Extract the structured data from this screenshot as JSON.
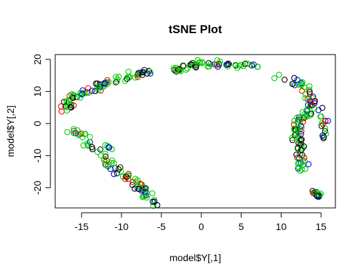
{
  "chart_data": {
    "type": "scatter",
    "title": "tSNE Plot",
    "xlabel": "model$Y[,1]",
    "ylabel": "model$Y[,2]",
    "xlim": [
      -18.3,
      16.8
    ],
    "ylim": [
      -26.3,
      21.5
    ],
    "xticks": [
      -15,
      -10,
      -5,
      0,
      5,
      10,
      15
    ],
    "yticks": [
      -20,
      -10,
      0,
      10,
      20
    ],
    "xtick_labels": [
      "-15",
      "-10",
      "-5",
      "0",
      "5",
      "10",
      "15"
    ],
    "ytick_labels": [
      "-20",
      "-10",
      "0",
      "10",
      "20"
    ],
    "grid": false,
    "legend": "none",
    "marker": "open-circle",
    "series_colors": [
      "#000000",
      "#ff0000",
      "#00cd00",
      "#0000ff"
    ],
    "clusters": [
      {
        "path": [
          [
            -17,
            4
          ],
          [
            -16.5,
            8
          ],
          [
            -15,
            9.5
          ],
          [
            -13.5,
            10.5
          ],
          [
            -12,
            12.5
          ],
          [
            -10,
            14
          ],
          [
            -8,
            15.5
          ],
          [
            -6,
            16.5
          ]
        ],
        "n": 85,
        "spread": 1.0
      },
      {
        "path": [
          [
            -17,
            -3
          ],
          [
            -15.5,
            -3
          ],
          [
            -14.5,
            -4
          ],
          [
            -14,
            -7.5
          ],
          [
            -12.5,
            -10
          ],
          [
            -11,
            -14
          ],
          [
            -9,
            -17
          ],
          [
            -7.5,
            -20
          ],
          [
            -6,
            -25
          ]
        ],
        "n": 85,
        "spread": 1.0
      },
      {
        "path": [
          [
            -3.5,
            16.5
          ],
          [
            -1.5,
            18
          ],
          [
            0.5,
            19
          ],
          [
            3,
            18.5
          ],
          [
            5.5,
            18.5
          ],
          [
            7.5,
            17
          ]
        ],
        "n": 60,
        "spread": 0.8
      },
      {
        "path": [
          [
            9.5,
            15
          ],
          [
            12,
            12.5
          ],
          [
            13.5,
            10
          ],
          [
            14,
            7
          ],
          [
            13,
            3
          ],
          [
            12,
            0
          ],
          [
            12,
            -4
          ],
          [
            12.5,
            -8
          ],
          [
            12.5,
            -12
          ],
          [
            12.5,
            -15
          ]
        ],
        "n": 110,
        "spread": 1.1
      },
      {
        "path": [
          [
            14.5,
            5
          ],
          [
            15.3,
            3
          ],
          [
            15.5,
            -1
          ],
          [
            15.3,
            -4.5
          ]
        ],
        "n": 18,
        "spread": 0.6
      },
      {
        "path": [
          [
            14,
            -21
          ],
          [
            15,
            -23
          ]
        ],
        "n": 18,
        "spread": 0.5
      },
      {
        "path": [
          [
            -12,
            -6.5
          ],
          [
            -11.5,
            -8
          ]
        ],
        "n": 6,
        "spread": 0.4
      }
    ],
    "total_points": 382
  }
}
